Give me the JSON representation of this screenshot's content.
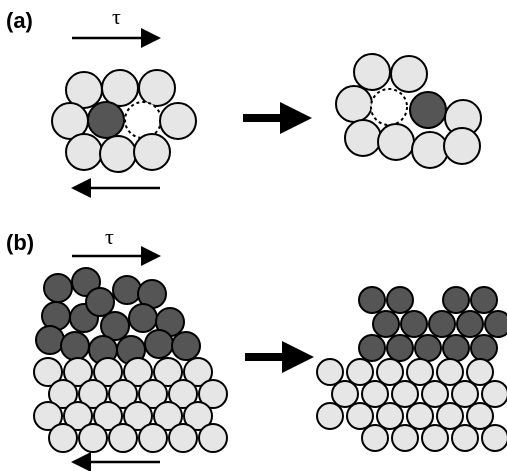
{
  "panels": [
    {
      "label": "(a)",
      "shear": "τ"
    },
    {
      "label": "(b)",
      "shear": "τ"
    }
  ]
}
